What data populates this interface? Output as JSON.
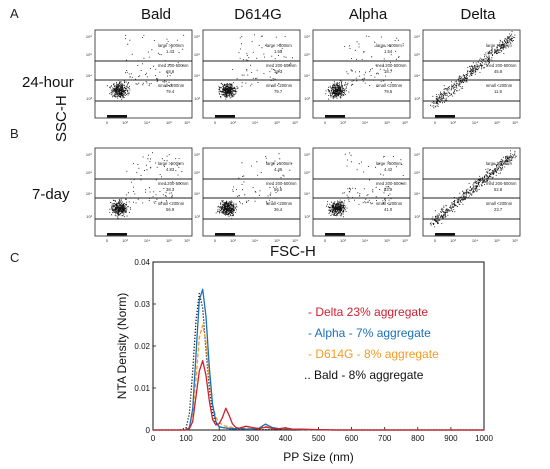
{
  "panels": {
    "a": "A",
    "b": "B",
    "c": "C"
  },
  "columns": [
    "Bald",
    "D614G",
    "Alpha",
    "Delta"
  ],
  "rows": [
    "24-hour",
    "7-day"
  ],
  "flow": {
    "ylabel": "SSC-H",
    "xlabel": "FSC-H",
    "gate_labels": {
      "large": "large >500nm",
      "med": "med 200-500nm",
      "small": "small <200nm"
    },
    "axis_ticks": [
      "10",
      "3",
      "4",
      "5",
      "6"
    ],
    "values": [
      {
        "large": "1.43",
        "med": "18.8",
        "small": "79.4"
      },
      {
        "large": "1.53",
        "med": "18.3",
        "small": "79.7"
      },
      {
        "large": "1.54",
        "med": "18.7",
        "small": "79.5"
      },
      {
        "large": "40.7",
        "med": "45.8",
        "small": "11.9"
      },
      {
        "large": "4.83",
        "med": "38.3",
        "small": "56.9"
      },
      {
        "large": "4.46",
        "med": "56.6",
        "small": "36.4"
      },
      {
        "large": "4.42",
        "med": "53.9",
        "small": "41.0"
      },
      {
        "large": "22.5",
        "med": "52.8",
        "small": "23.7"
      }
    ]
  },
  "chart_data": {
    "type": "line",
    "xlabel": "PP Size (nm)",
    "ylabel": "NTA Density (Norm)",
    "xlim": [
      0,
      1000
    ],
    "ylim": [
      0,
      0.04
    ],
    "x_ticks": [
      "0",
      "100",
      "200",
      "300",
      "400",
      "500",
      "600",
      "700",
      "800",
      "900",
      "1000"
    ],
    "y_ticks": [
      "0",
      "0.01",
      "0.02",
      "0.03",
      "0.04"
    ],
    "x": [
      0,
      80,
      100,
      110,
      120,
      130,
      140,
      150,
      160,
      170,
      180,
      190,
      200,
      210,
      220,
      230,
      240,
      250,
      260,
      280,
      300,
      320,
      340,
      360,
      380,
      400,
      420,
      450,
      500,
      550,
      600,
      700,
      800,
      900,
      1000
    ],
    "series": [
      {
        "name": "- Delta 23% aggregate",
        "color": "#d0202e",
        "dash": "solid",
        "values": [
          0,
          0,
          0,
          0.0003,
          0.002,
          0.008,
          0.014,
          0.0165,
          0.013,
          0.007,
          0.0025,
          0.0012,
          0.0015,
          0.003,
          0.0052,
          0.0035,
          0.0015,
          0.0006,
          0.0004,
          0.0009,
          0.0006,
          0.0003,
          0.0007,
          0.0004,
          0.0002,
          0.0005,
          0.0002,
          0.0002,
          0.0001,
          0,
          0,
          0,
          0,
          0,
          0
        ]
      },
      {
        "name": "- Alpha - 7% aggregate",
        "color": "#1a70b8",
        "dash": "solid",
        "values": [
          0,
          0,
          0,
          0.0006,
          0.005,
          0.018,
          0.031,
          0.0335,
          0.027,
          0.015,
          0.006,
          0.002,
          0.0008,
          0.0006,
          0.0005,
          0.0004,
          0.0003,
          0.0003,
          0.0004,
          0.0002,
          0.0002,
          0.0004,
          0.0014,
          0.0006,
          0.0003,
          0.0005,
          0.0002,
          0.0001,
          0.0001,
          0,
          0,
          0,
          0,
          0,
          0
        ]
      },
      {
        "name": "- D614G - 8% aggregate",
        "color": "#f59b23",
        "dash": "dashed",
        "values": [
          0,
          0,
          0,
          0.0005,
          0.004,
          0.012,
          0.022,
          0.025,
          0.021,
          0.0125,
          0.006,
          0.003,
          0.0018,
          0.0012,
          0.0009,
          0.0008,
          0.0006,
          0.0005,
          0.0004,
          0.0004,
          0.0003,
          0.0004,
          0.0009,
          0.0005,
          0.0003,
          0.0003,
          0.0002,
          0.0001,
          0,
          0,
          0,
          0,
          0,
          0,
          0
        ]
      },
      {
        "name": ".. Bald - 8% aggregate",
        "color": "#111111",
        "dash": "dotted",
        "values": [
          0,
          0,
          0.0005,
          0.004,
          0.014,
          0.026,
          0.0325,
          0.029,
          0.019,
          0.01,
          0.004,
          0.0015,
          0.0008,
          0.0006,
          0.0004,
          0.0003,
          0.0002,
          0.0002,
          0.0001,
          0.0001,
          0.0001,
          0.0001,
          0.0001,
          0.0001,
          0.0001,
          0.0001,
          0,
          0,
          0,
          0,
          0,
          0,
          0,
          0,
          0
        ]
      }
    ],
    "legend": "right"
  }
}
